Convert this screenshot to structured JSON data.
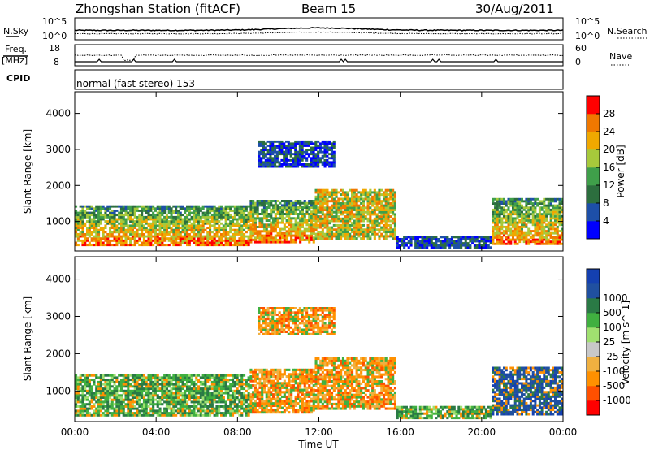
{
  "header": {
    "title": "Zhongshan Station (fitACF)",
    "beam": "Beam 15",
    "date": "30/Aug/2011"
  },
  "top_panels": {
    "nsky_label": "N.Sky",
    "nsky_ticks": [
      "10^5",
      "10^0"
    ],
    "nsearch_label": "N.Search",
    "nsearch_ticks": [
      "10^5",
      "10^0"
    ],
    "freq_label": "Freq.",
    "freq_unit": "[MHz]",
    "freq_ticks": [
      "18",
      "8"
    ],
    "nave_label": "Nave",
    "nave_ticks": [
      "60",
      "0"
    ],
    "cpid_label": "CPID",
    "cpid_value": "normal (fast stereo) 153"
  },
  "colors": {
    "power": [
      "#0000ff",
      "#1d4fa8",
      "#2c6e3e",
      "#3f9f4a",
      "#a7c93b",
      "#f0a800",
      "#f07800",
      "#ff0000"
    ],
    "velocity": [
      "#ff0000",
      "#ff5000",
      "#ff9000",
      "#f0b040",
      "#c8c8c8",
      "#a0e070",
      "#40b040",
      "#2a7a45",
      "#2050a0",
      "#1440b0"
    ]
  },
  "chart_data": [
    {
      "type": "heatmap",
      "name": "power",
      "ylabel": "Slant Range [km]",
      "xlabel": "",
      "ylim": [
        180,
        4600
      ],
      "xlim": [
        0,
        24
      ],
      "y_ticks": [
        "1000",
        "2000",
        "3000",
        "4000"
      ],
      "y_tick_values": [
        1000,
        2000,
        3000,
        4000
      ],
      "colorbar_label": "Power [dB]",
      "colorbar_ticks": [
        "4",
        "8",
        "12",
        "16",
        "20",
        "24",
        "28"
      ],
      "regions": [
        {
          "t0": 0.0,
          "t1": 8.6,
          "r0": 320,
          "r1": 1450,
          "level": "high"
        },
        {
          "t0": 8.6,
          "t1": 11.8,
          "r0": 400,
          "r1": 1600,
          "level": "high"
        },
        {
          "t0": 9.0,
          "t1": 12.8,
          "r0": 2500,
          "r1": 3250,
          "level": "low"
        },
        {
          "t0": 11.8,
          "t1": 15.8,
          "r0": 500,
          "r1": 1900,
          "level": "mid"
        },
        {
          "t0": 15.8,
          "t1": 20.5,
          "r0": 250,
          "r1": 600,
          "level": "low"
        },
        {
          "t0": 20.5,
          "t1": 24.0,
          "r0": 350,
          "r1": 1650,
          "level": "high"
        }
      ]
    },
    {
      "type": "heatmap",
      "name": "velocity",
      "ylabel": "Slant Range [km]",
      "xlabel": "Time UT",
      "ylim": [
        180,
        4600
      ],
      "xlim": [
        0,
        24
      ],
      "x_ticks": [
        "00:00",
        "04:00",
        "08:00",
        "12:00",
        "16:00",
        "20:00",
        "00:00"
      ],
      "x_tick_values": [
        0,
        4,
        8,
        12,
        16,
        20,
        24
      ],
      "y_ticks": [
        "1000",
        "2000",
        "3000",
        "4000"
      ],
      "y_tick_values": [
        1000,
        2000,
        3000,
        4000
      ],
      "colorbar_label": "Velocity [m s^-1]",
      "colorbar_ticks": [
        "1000",
        "500",
        "100",
        "25",
        "-25",
        "-100",
        "-500",
        "-1000"
      ],
      "regions": [
        {
          "t0": 0.0,
          "t1": 8.6,
          "r0": 320,
          "r1": 1450,
          "level": "green"
        },
        {
          "t0": 8.6,
          "t1": 11.8,
          "r0": 400,
          "r1": 1600,
          "level": "orange"
        },
        {
          "t0": 9.0,
          "t1": 12.8,
          "r0": 2500,
          "r1": 3250,
          "level": "orange"
        },
        {
          "t0": 11.8,
          "t1": 15.8,
          "r0": 500,
          "r1": 1900,
          "level": "orange"
        },
        {
          "t0": 15.8,
          "t1": 20.5,
          "r0": 250,
          "r1": 600,
          "level": "green"
        },
        {
          "t0": 20.5,
          "t1": 24.0,
          "r0": 350,
          "r1": 1650,
          "level": "blue"
        }
      ]
    }
  ]
}
